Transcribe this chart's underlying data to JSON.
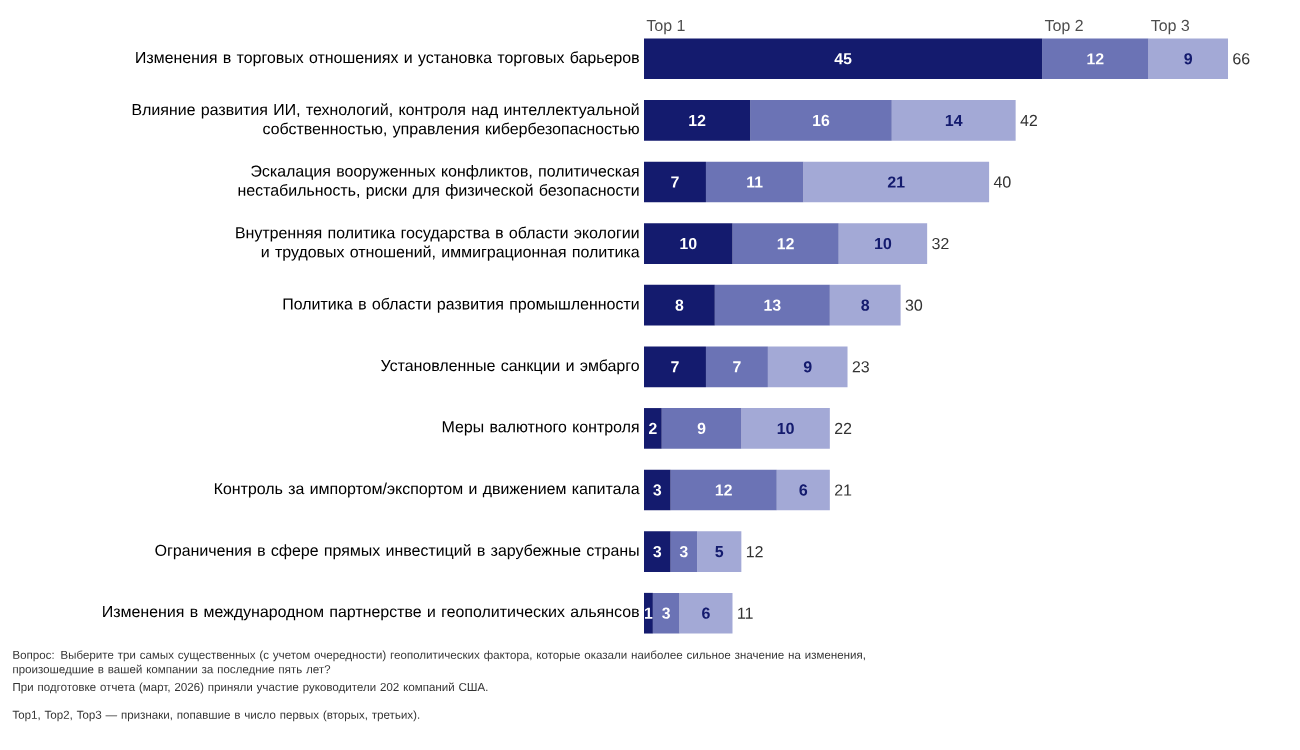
{
  "chart_data": {
    "type": "bar",
    "orientation": "horizontal",
    "stacked": true,
    "data_labels": true,
    "tick_labels": "y",
    "categories": [
      "Изменения в торговых отношениях и установка торговых барьеров",
      "Влияние развития ИИ, технологий, контроля над интеллектуальной собственностью, управления кибербезопасностью",
      "Эскалация вооруженных конфликтов, политическая нестабильность, риски для физической безопасности",
      "Внутренняя политика государства в области экологии и трудовых отношений, иммиграционная политика",
      "Политика в области развития промышленности",
      "Установленные санкции и эмбарго",
      "Меры валютного контроля",
      "Контроль за импортом/экспортом и движением капитала",
      "Ограничения в сфере прямых инвестиций в зарубежные страны",
      "Изменения в международном партнерстве и геополитических альянсов"
    ],
    "series": [
      {
        "name": "Top 1",
        "color": "#141b6e",
        "values": [
          45,
          12,
          7,
          10,
          8,
          7,
          2,
          3,
          3,
          1
        ]
      },
      {
        "name": "Top 2",
        "color": "#6b73b5",
        "values": [
          12,
          16,
          11,
          12,
          13,
          7,
          9,
          12,
          3,
          3
        ]
      },
      {
        "name": "Top 3",
        "color": "#a3a9d6",
        "values": [
          9,
          14,
          21,
          10,
          8,
          9,
          10,
          6,
          5,
          6
        ]
      }
    ],
    "totals": [
      "66",
      "42",
      "40",
      "32",
      "30",
      "23",
      "22",
      "21",
      "12",
      "11"
    ],
    "annotations": [
      "Вопрос: Выберите три самых существенных (с учетом очередности) геополитических фактора, которые оказали наиболее сильное значение на изменения, произошедшие в вашей компании за последние пять лет?",
      "При подготовке отчета (март, 2026) приняли участие руководители 202 компаний США.",
      "Top1, Top2, Top3 — признаки, попавшие в число первых (вторых, третьих)."
    ]
  }
}
